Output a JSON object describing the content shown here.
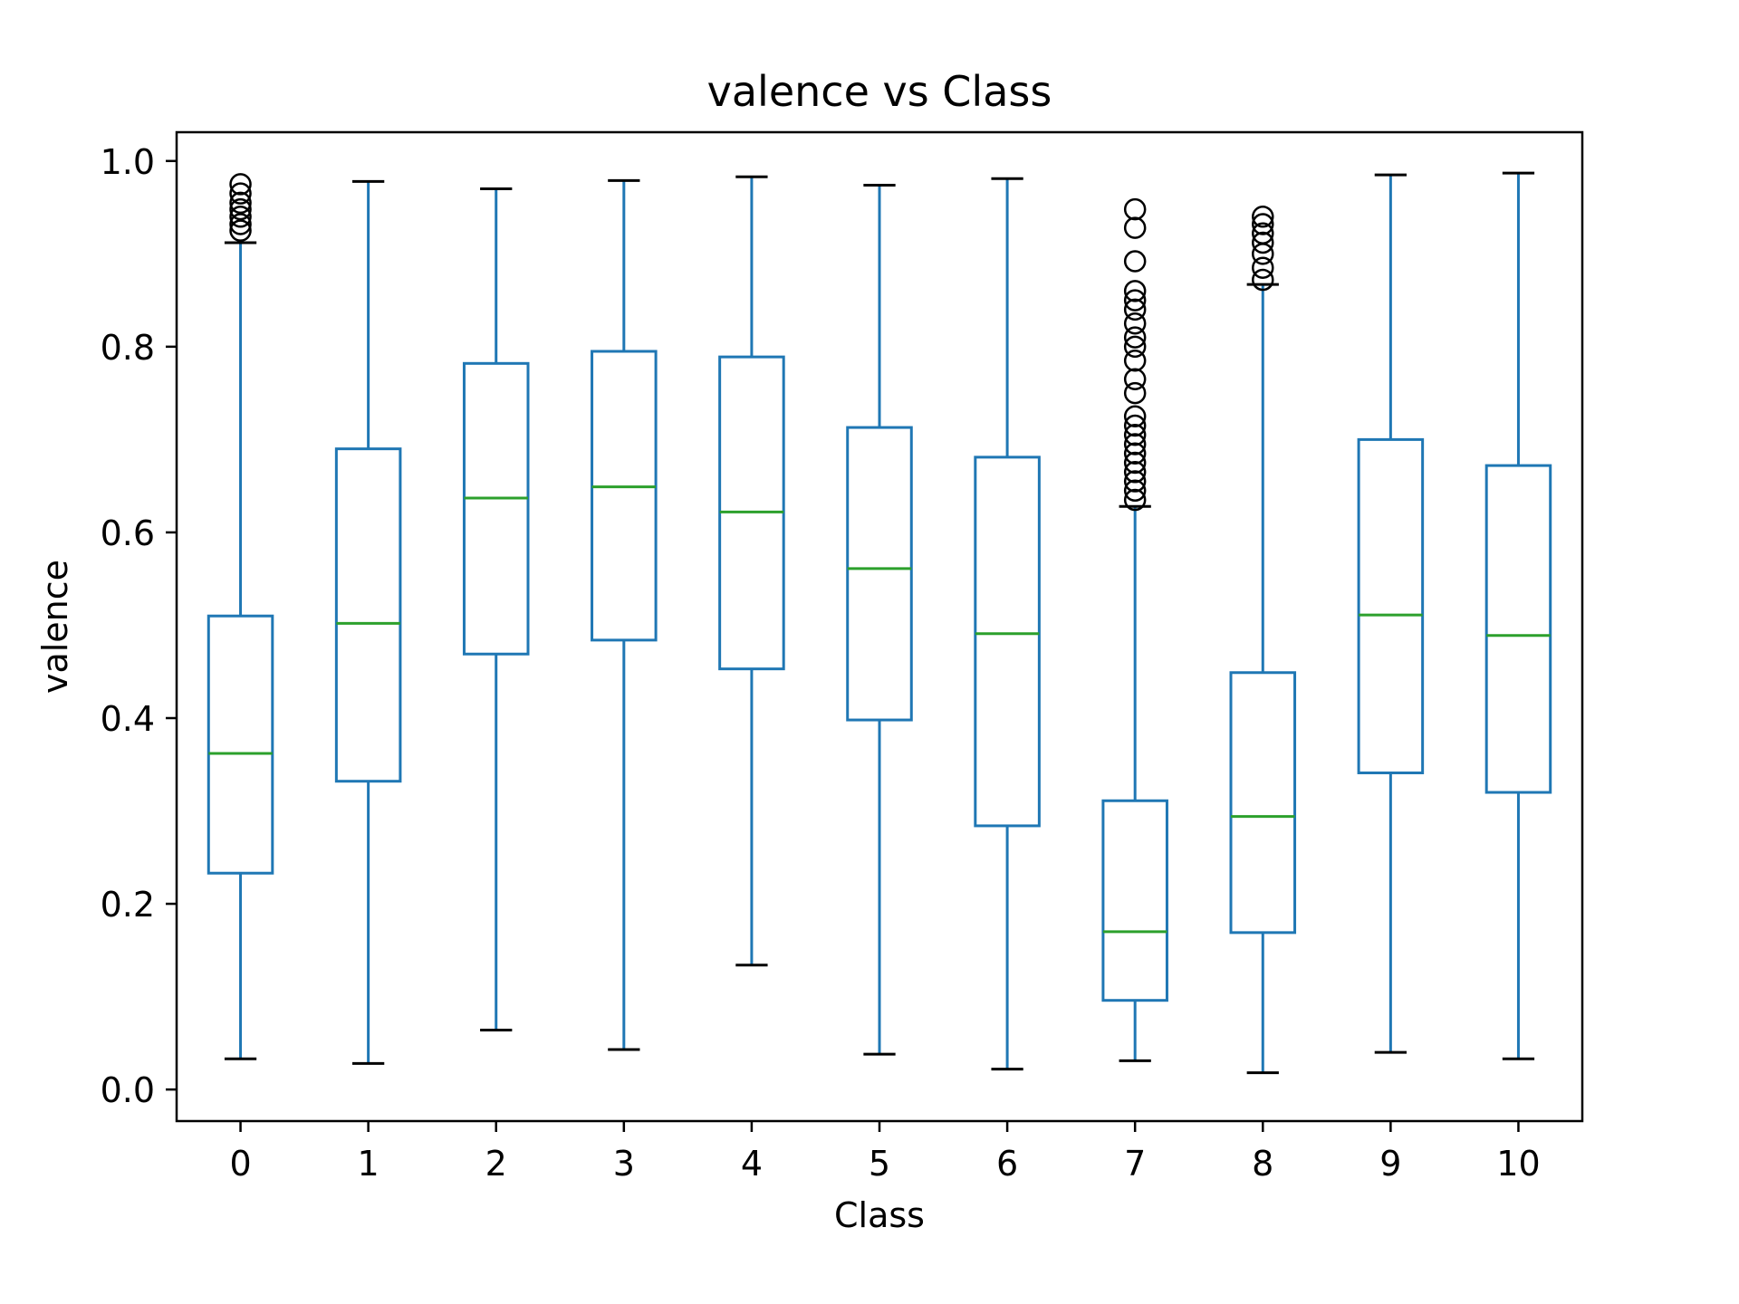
{
  "chart_data": {
    "type": "box",
    "title": "valence vs Class",
    "xlabel": "Class",
    "ylabel": "valence",
    "ylim": [
      -0.034,
      1.031
    ],
    "yticks": [
      0.0,
      0.2,
      0.4,
      0.6,
      0.8,
      1.0
    ],
    "ytick_labels": [
      "0.0",
      "0.2",
      "0.4",
      "0.6",
      "0.8",
      "1.0"
    ],
    "categories": [
      "0",
      "1",
      "2",
      "3",
      "4",
      "5",
      "6",
      "7",
      "8",
      "9",
      "10"
    ],
    "grid": false,
    "legend": "none",
    "colors": {
      "box": "#1f77b4",
      "median": "#2ca02c",
      "cap": "#000000",
      "flier": "#000000"
    },
    "boxes": [
      {
        "class": "0",
        "whisker_low": 0.033,
        "q1": 0.233,
        "median": 0.362,
        "q3": 0.51,
        "whisker_high": 0.912,
        "fliers": [
          0.925,
          0.932,
          0.94,
          0.948,
          0.955,
          0.965,
          0.975
        ]
      },
      {
        "class": "1",
        "whisker_low": 0.028,
        "q1": 0.332,
        "median": 0.502,
        "q3": 0.69,
        "whisker_high": 0.978,
        "fliers": []
      },
      {
        "class": "2",
        "whisker_low": 0.064,
        "q1": 0.469,
        "median": 0.637,
        "q3": 0.782,
        "whisker_high": 0.97,
        "fliers": []
      },
      {
        "class": "3",
        "whisker_low": 0.043,
        "q1": 0.484,
        "median": 0.649,
        "q3": 0.795,
        "whisker_high": 0.979,
        "fliers": []
      },
      {
        "class": "4",
        "whisker_low": 0.134,
        "q1": 0.453,
        "median": 0.622,
        "q3": 0.789,
        "whisker_high": 0.983,
        "fliers": []
      },
      {
        "class": "5",
        "whisker_low": 0.038,
        "q1": 0.398,
        "median": 0.561,
        "q3": 0.713,
        "whisker_high": 0.974,
        "fliers": []
      },
      {
        "class": "6",
        "whisker_low": 0.022,
        "q1": 0.284,
        "median": 0.491,
        "q3": 0.681,
        "whisker_high": 0.981,
        "fliers": []
      },
      {
        "class": "7",
        "whisker_low": 0.031,
        "q1": 0.096,
        "median": 0.17,
        "q3": 0.311,
        "whisker_high": 0.628,
        "fliers": [
          0.635,
          0.645,
          0.655,
          0.665,
          0.675,
          0.685,
          0.695,
          0.705,
          0.715,
          0.725,
          0.75,
          0.765,
          0.785,
          0.8,
          0.81,
          0.825,
          0.84,
          0.85,
          0.86,
          0.892,
          0.928,
          0.948
        ]
      },
      {
        "class": "8",
        "whisker_low": 0.018,
        "q1": 0.169,
        "median": 0.294,
        "q3": 0.449,
        "whisker_high": 0.867,
        "fliers": [
          0.872,
          0.885,
          0.9,
          0.912,
          0.922,
          0.932,
          0.94
        ]
      },
      {
        "class": "9",
        "whisker_low": 0.04,
        "q1": 0.341,
        "median": 0.511,
        "q3": 0.7,
        "whisker_high": 0.985,
        "fliers": []
      },
      {
        "class": "10",
        "whisker_low": 0.033,
        "q1": 0.32,
        "median": 0.489,
        "q3": 0.672,
        "whisker_high": 0.987,
        "fliers": []
      }
    ]
  }
}
